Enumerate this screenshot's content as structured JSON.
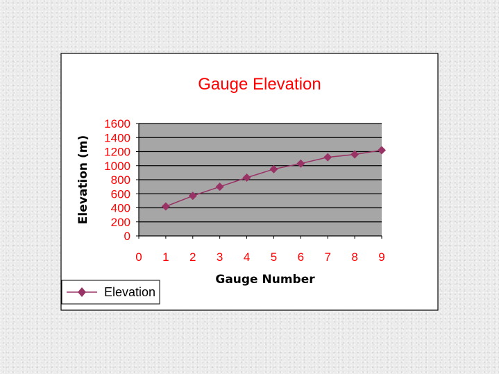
{
  "colors": {
    "chart_area": "#ffffff",
    "plot_area": "#a6a6a6",
    "gridline": "#000000",
    "series": "#993366",
    "text_accent": "#ff0000"
  },
  "chart_data": {
    "type": "line",
    "title": "Gauge Elevation",
    "xlabel": "Gauge Number",
    "ylabel": "Elevation (m)",
    "xlim": [
      0,
      9
    ],
    "ylim": [
      0,
      1600
    ],
    "xticks": [
      "0",
      "1",
      "2",
      "3",
      "4",
      "5",
      "6",
      "7",
      "8",
      "9"
    ],
    "yticks": [
      "0",
      "200",
      "400",
      "600",
      "800",
      "1000",
      "1200",
      "1400",
      "1600"
    ],
    "grid": "horizontal",
    "legend_position": "bottom-left",
    "series": [
      {
        "name": "Elevation",
        "marker": "diamond",
        "x": [
          1,
          2,
          3,
          4,
          5,
          6,
          7,
          8,
          9
        ],
        "y": [
          420,
          570,
          700,
          830,
          950,
          1030,
          1120,
          1160,
          1220
        ]
      }
    ]
  }
}
